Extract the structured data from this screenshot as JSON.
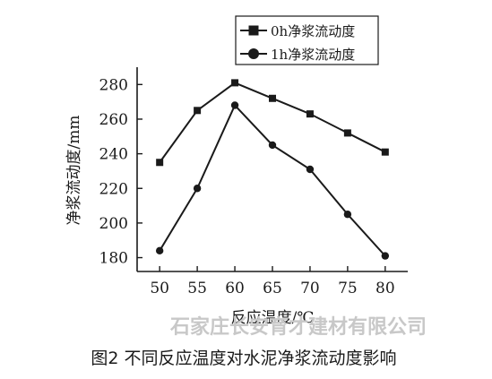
{
  "chart_data": {
    "type": "line",
    "x": [
      50,
      55,
      60,
      65,
      70,
      75,
      80
    ],
    "series": [
      {
        "name": "0h净浆流动度",
        "marker": "square",
        "values": [
          235,
          265,
          281,
          272,
          263,
          252,
          241
        ]
      },
      {
        "name": "1h净浆流动度",
        "marker": "circle",
        "values": [
          184,
          220,
          268,
          245,
          231,
          205,
          181
        ]
      }
    ],
    "xlabel": "反应温度/℃",
    "ylabel": "净浆流动度/mm",
    "xlim": [
      47,
      83
    ],
    "ylim": [
      172,
      290
    ],
    "xticks": [
      "50",
      "55",
      "60",
      "65",
      "70",
      "75",
      "80"
    ],
    "yticks": [
      "180",
      "200",
      "220",
      "240",
      "260",
      "280"
    ],
    "legend_position": "top"
  },
  "caption": "图2  不同反应温度对水泥净浆流动度影响",
  "watermark": "石家庄长安育才建材有限公司"
}
